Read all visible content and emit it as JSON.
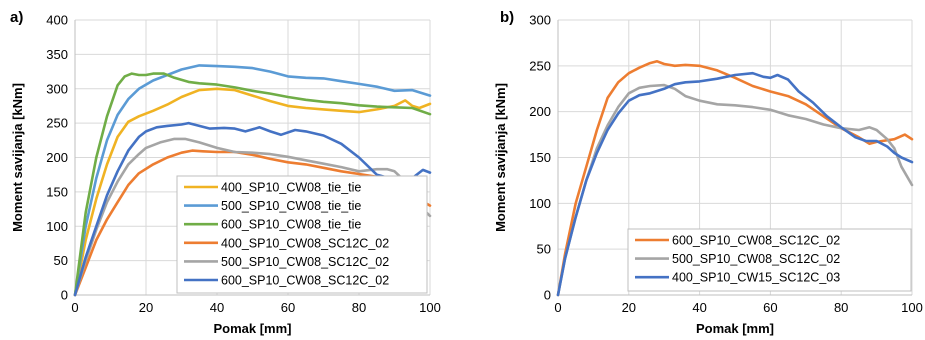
{
  "chart_data": [
    {
      "type": "line",
      "panel_label": "a)",
      "xlabel": "Pomak [mm]",
      "ylabel": "Moment savijanja [kNm]",
      "xlim": [
        0,
        100
      ],
      "ylim": [
        0,
        400
      ],
      "xticks": [
        0,
        20,
        40,
        60,
        80,
        100
      ],
      "yticks": [
        0,
        50,
        100,
        150,
        200,
        250,
        300,
        350,
        400
      ],
      "grid": true,
      "legend_position": "bottom-right",
      "series": [
        {
          "name": "400_SP10_CW08_tie_tie",
          "color": "#f0b323",
          "x": [
            0,
            3,
            6,
            9,
            12,
            15,
            18,
            22,
            26,
            30,
            35,
            40,
            45,
            50,
            55,
            60,
            65,
            70,
            75,
            80,
            85,
            90,
            93,
            95,
            97,
            100
          ],
          "y": [
            0,
            80,
            140,
            190,
            230,
            252,
            260,
            268,
            277,
            288,
            298,
            300,
            298,
            290,
            282,
            275,
            272,
            270,
            268,
            266,
            270,
            275,
            283,
            275,
            272,
            278
          ]
        },
        {
          "name": "500_SP10_CW08_tie_tie",
          "color": "#5b9bd5",
          "x": [
            0,
            3,
            6,
            9,
            12,
            15,
            18,
            22,
            26,
            30,
            35,
            40,
            45,
            50,
            55,
            60,
            65,
            70,
            75,
            80,
            85,
            90,
            95,
            100
          ],
          "y": [
            0,
            100,
            170,
            225,
            262,
            285,
            300,
            312,
            320,
            328,
            334,
            333,
            332,
            330,
            325,
            318,
            316,
            315,
            311,
            307,
            303,
            297,
            298,
            290
          ]
        },
        {
          "name": "600_SP10_CW08_tie_tie",
          "color": "#70ad47",
          "x": [
            0,
            3,
            6,
            9,
            12,
            14,
            16,
            18,
            20,
            22,
            25,
            28,
            32,
            35,
            40,
            45,
            50,
            55,
            60,
            65,
            70,
            75,
            80,
            85,
            90,
            95,
            100
          ],
          "y": [
            0,
            120,
            200,
            260,
            305,
            318,
            322,
            320,
            320,
            322,
            322,
            316,
            310,
            308,
            306,
            302,
            297,
            293,
            288,
            284,
            281,
            279,
            276,
            274,
            273,
            272,
            263
          ]
        },
        {
          "name": "400_SP10_CW08_SC12C_02",
          "color": "#ed7d31",
          "x": [
            0,
            3,
            6,
            9,
            12,
            15,
            18,
            22,
            26,
            30,
            33,
            36,
            40,
            45,
            50,
            55,
            60,
            65,
            70,
            75,
            80,
            85,
            90,
            95,
            100
          ],
          "y": [
            0,
            40,
            80,
            110,
            135,
            160,
            177,
            190,
            200,
            207,
            210,
            209,
            208,
            208,
            204,
            198,
            193,
            190,
            185,
            180,
            176,
            172,
            167,
            145,
            130
          ]
        },
        {
          "name": "500_SP10_CW08_SC12C_02",
          "color": "#a5a5a5",
          "x": [
            0,
            3,
            6,
            9,
            12,
            15,
            18,
            20,
            24,
            28,
            31,
            35,
            40,
            45,
            50,
            55,
            60,
            65,
            70,
            75,
            80,
            85,
            88,
            90,
            92,
            95,
            100
          ],
          "y": [
            0,
            50,
            95,
            135,
            165,
            190,
            205,
            214,
            222,
            227,
            227,
            222,
            214,
            208,
            207,
            205,
            201,
            196,
            191,
            186,
            180,
            183,
            183,
            180,
            170,
            140,
            115
          ]
        },
        {
          "name": "600_SP10_CW08_SC12C_02",
          "color": "#4472c4",
          "x": [
            0,
            3,
            6,
            9,
            12,
            15,
            18,
            20,
            23,
            26,
            30,
            32,
            35,
            38,
            42,
            45,
            48,
            52,
            55,
            58,
            62,
            65,
            70,
            75,
            80,
            85,
            90,
            95,
            98,
            100
          ],
          "y": [
            0,
            55,
            100,
            145,
            180,
            210,
            230,
            238,
            244,
            246,
            248,
            250,
            246,
            242,
            243,
            242,
            238,
            244,
            238,
            233,
            240,
            238,
            232,
            220,
            200,
            175,
            168,
            170,
            182,
            178
          ]
        }
      ]
    },
    {
      "type": "line",
      "panel_label": "b)",
      "xlabel": "Pomak [mm]",
      "ylabel": "Moment savijanja [kNm]",
      "xlim": [
        0,
        100
      ],
      "ylim": [
        0,
        300
      ],
      "xticks": [
        0,
        20,
        40,
        60,
        80,
        100
      ],
      "yticks": [
        0,
        50,
        100,
        150,
        200,
        250,
        300
      ],
      "grid": true,
      "legend_position": "bottom-right",
      "series": [
        {
          "name": "600_SP10_CW08_SC12C_02",
          "color": "#ed7d31",
          "x": [
            0,
            2,
            5,
            8,
            11,
            14,
            17,
            20,
            23,
            26,
            28,
            30,
            33,
            36,
            40,
            45,
            50,
            55,
            60,
            65,
            70,
            75,
            80,
            85,
            88,
            90,
            95,
            98,
            100
          ],
          "y": [
            0,
            45,
            100,
            140,
            180,
            215,
            232,
            242,
            248,
            253,
            255,
            252,
            250,
            251,
            250,
            245,
            237,
            228,
            222,
            217,
            208,
            195,
            182,
            172,
            165,
            167,
            170,
            175,
            170
          ]
        },
        {
          "name": "500_SP10_CW08_SC12C_02",
          "color": "#a5a5a5",
          "x": [
            0,
            2,
            5,
            8,
            11,
            14,
            17,
            20,
            23,
            26,
            30,
            33,
            36,
            40,
            45,
            50,
            55,
            60,
            65,
            70,
            75,
            80,
            85,
            88,
            90,
            93,
            95,
            97,
            100
          ],
          "y": [
            0,
            40,
            85,
            125,
            160,
            185,
            205,
            220,
            226,
            228,
            229,
            225,
            217,
            212,
            208,
            207,
            205,
            202,
            196,
            192,
            186,
            182,
            180,
            183,
            180,
            170,
            160,
            140,
            120
          ]
        },
        {
          "name": "400_SP10_CW15_SC12C_03",
          "color": "#4472c4",
          "x": [
            0,
            2,
            5,
            8,
            11,
            14,
            17,
            20,
            23,
            26,
            30,
            33,
            36,
            40,
            45,
            50,
            55,
            58,
            60,
            62,
            65,
            68,
            72,
            76,
            80,
            84,
            87,
            90,
            93,
            95,
            97,
            100
          ],
          "y": [
            0,
            40,
            85,
            125,
            155,
            180,
            198,
            212,
            218,
            220,
            225,
            230,
            232,
            233,
            236,
            240,
            242,
            238,
            237,
            240,
            235,
            222,
            210,
            195,
            183,
            172,
            168,
            168,
            162,
            155,
            150,
            145
          ]
        }
      ]
    }
  ]
}
